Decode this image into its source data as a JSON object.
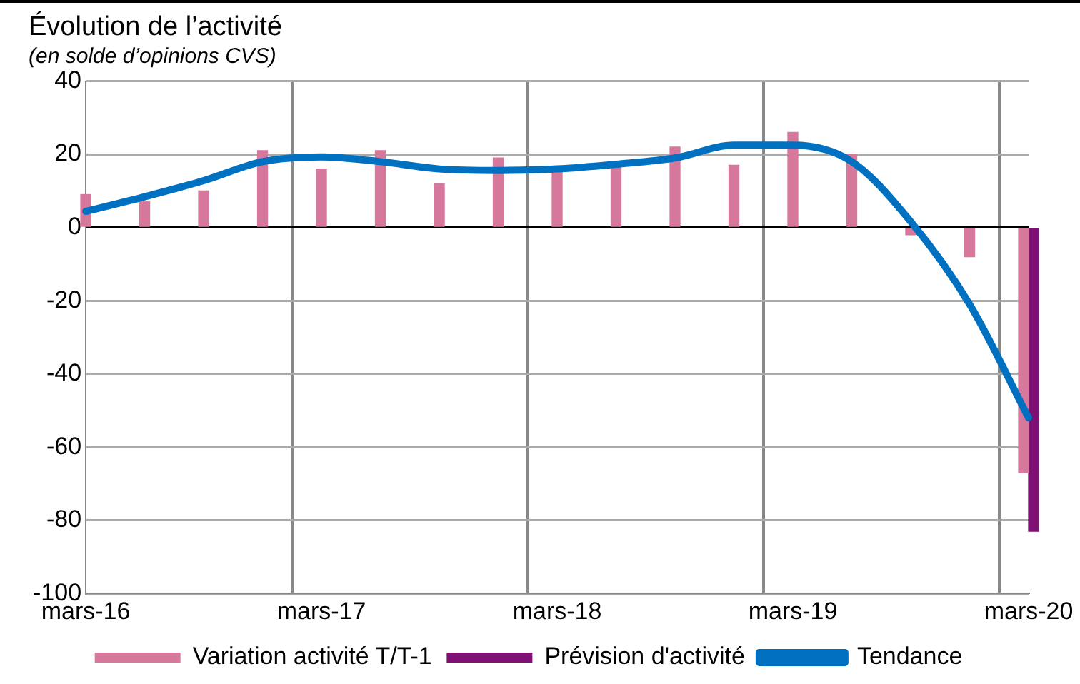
{
  "chart_data": {
    "type": "bar",
    "title": "Évolution de l’activité",
    "subtitle": "(en solde d’opinions CVS)",
    "categories": [
      "mars-16",
      null,
      null,
      null,
      "mars-17",
      null,
      null,
      null,
      "mars-18",
      null,
      null,
      null,
      "mars-19",
      null,
      null,
      null,
      "mars-20"
    ],
    "series": [
      {
        "name": "Variation activité T/T-1",
        "color": "#d6789c",
        "values": [
          9,
          7,
          10,
          21,
          16,
          21,
          12,
          19,
          16,
          17,
          22,
          17,
          26,
          20,
          -2,
          -8,
          -67
        ]
      },
      {
        "name": "Prévision d'activité",
        "color": "#7e1173",
        "values": [
          null,
          null,
          null,
          null,
          null,
          null,
          null,
          null,
          null,
          null,
          null,
          null,
          null,
          null,
          null,
          null,
          -83
        ]
      },
      {
        "name": "Tendance",
        "type": "line",
        "color": "#0070c0",
        "values": [
          4.4,
          8.4,
          12.8,
          18,
          19.3,
          18,
          16,
          15.6,
          16,
          17.3,
          19,
          22.5,
          22.5,
          18,
          1.6,
          -21,
          -52
        ]
      }
    ],
    "ylim": [
      -100,
      40
    ],
    "yticks": [
      -100,
      -80,
      -60,
      -40,
      -20,
      0,
      20,
      40
    ],
    "grid": true,
    "legend": "bottom",
    "marker": "none"
  }
}
